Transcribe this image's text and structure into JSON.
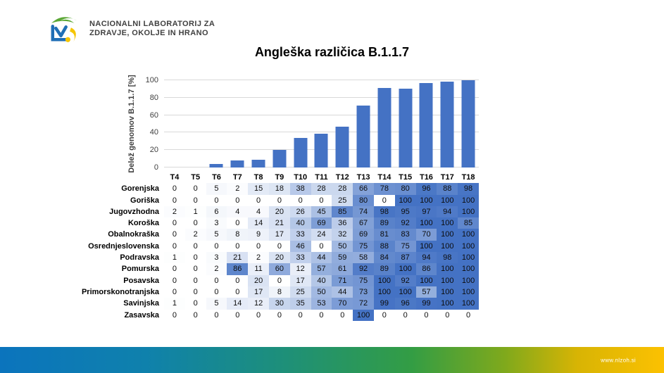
{
  "logo": {
    "line1": "NACIONALNI LABORATORIJ ZA",
    "line2": "ZDRAVJE, OKOLJE IN HRANO"
  },
  "title": "Angleška različica B.1.1.7",
  "chart_data": [
    {
      "type": "bar",
      "title": "Angleška različica B.1.1.7",
      "categories": [
        "T4",
        "T5",
        "T6",
        "T7",
        "T8",
        "T9",
        "T10",
        "T11",
        "T12",
        "T13",
        "T14",
        "T15",
        "T16",
        "T17",
        "T18"
      ],
      "values": [
        0,
        0,
        4,
        8,
        9,
        20,
        34,
        39,
        47,
        71,
        91,
        90,
        97,
        98,
        100
      ],
      "xlabel": "",
      "ylabel": "Delež genomov B.1.1.7 [%]",
      "ylim": [
        0,
        100
      ],
      "yticks": [
        0,
        20,
        40,
        60,
        80,
        100
      ],
      "grid": true,
      "legend": false,
      "bar_color": "#4472C4",
      "gridline_color": "#D9D9D9"
    },
    {
      "type": "heatmap",
      "columns": [
        "T4",
        "T5",
        "T6",
        "T7",
        "T8",
        "T9",
        "T10",
        "T11",
        "T12",
        "T13",
        "T14",
        "T15",
        "T16",
        "T17",
        "T18"
      ],
      "rows": [
        {
          "label": "Gorenjska",
          "values": [
            0,
            0,
            5,
            2,
            15,
            18,
            38,
            28,
            28,
            66,
            78,
            80,
            96,
            88,
            98
          ]
        },
        {
          "label": "Goriška",
          "values": [
            0,
            0,
            0,
            0,
            0,
            0,
            0,
            0,
            25,
            80,
            0,
            100,
            100,
            100,
            100
          ]
        },
        {
          "label": "Jugovzhodna",
          "values": [
            2,
            1,
            6,
            4,
            4,
            20,
            26,
            45,
            85,
            74,
            98,
            95,
            97,
            94,
            100
          ]
        },
        {
          "label": "Koroška",
          "values": [
            0,
            0,
            3,
            0,
            14,
            21,
            40,
            69,
            36,
            67,
            89,
            92,
            100,
            100,
            85
          ]
        },
        {
          "label": "Obalnokraška",
          "values": [
            0,
            2,
            5,
            8,
            9,
            17,
            33,
            24,
            32,
            69,
            81,
            83,
            70,
            100,
            100
          ]
        },
        {
          "label": "Osrednjeslovenska",
          "values": [
            0,
            0,
            0,
            0,
            0,
            0,
            46,
            0,
            50,
            75,
            88,
            75,
            100,
            100,
            100
          ]
        },
        {
          "label": "Podravska",
          "values": [
            1,
            0,
            3,
            21,
            2,
            20,
            33,
            44,
            59,
            58,
            84,
            87,
            94,
            98,
            100
          ]
        },
        {
          "label": "Pomurska",
          "values": [
            0,
            0,
            2,
            86,
            11,
            60,
            12,
            57,
            61,
            92,
            89,
            100,
            86,
            100,
            100
          ]
        },
        {
          "label": "Posavska",
          "values": [
            0,
            0,
            0,
            0,
            20,
            0,
            17,
            40,
            71,
            75,
            100,
            92,
            100,
            100,
            100
          ]
        },
        {
          "label": "Primorskonotranjska",
          "values": [
            0,
            0,
            0,
            0,
            17,
            8,
            25,
            50,
            44,
            73,
            100,
            100,
            57,
            100,
            100
          ]
        },
        {
          "label": "Savinjska",
          "values": [
            1,
            0,
            5,
            14,
            12,
            30,
            35,
            53,
            70,
            72,
            99,
            96,
            99,
            100,
            100
          ]
        },
        {
          "label": "Zasavska",
          "values": [
            0,
            0,
            0,
            0,
            0,
            0,
            0,
            0,
            0,
            100,
            0,
            0,
            0,
            0,
            0
          ]
        }
      ],
      "color_scale": {
        "min": 0,
        "max": 100,
        "min_color": "#FFFFFF",
        "max_color": "#4472C4"
      }
    }
  ],
  "footer": {
    "url": "www.nlzoh.si",
    "gradient_colors": [
      "#0B74BD",
      "#339D44",
      "#FCC101"
    ]
  }
}
